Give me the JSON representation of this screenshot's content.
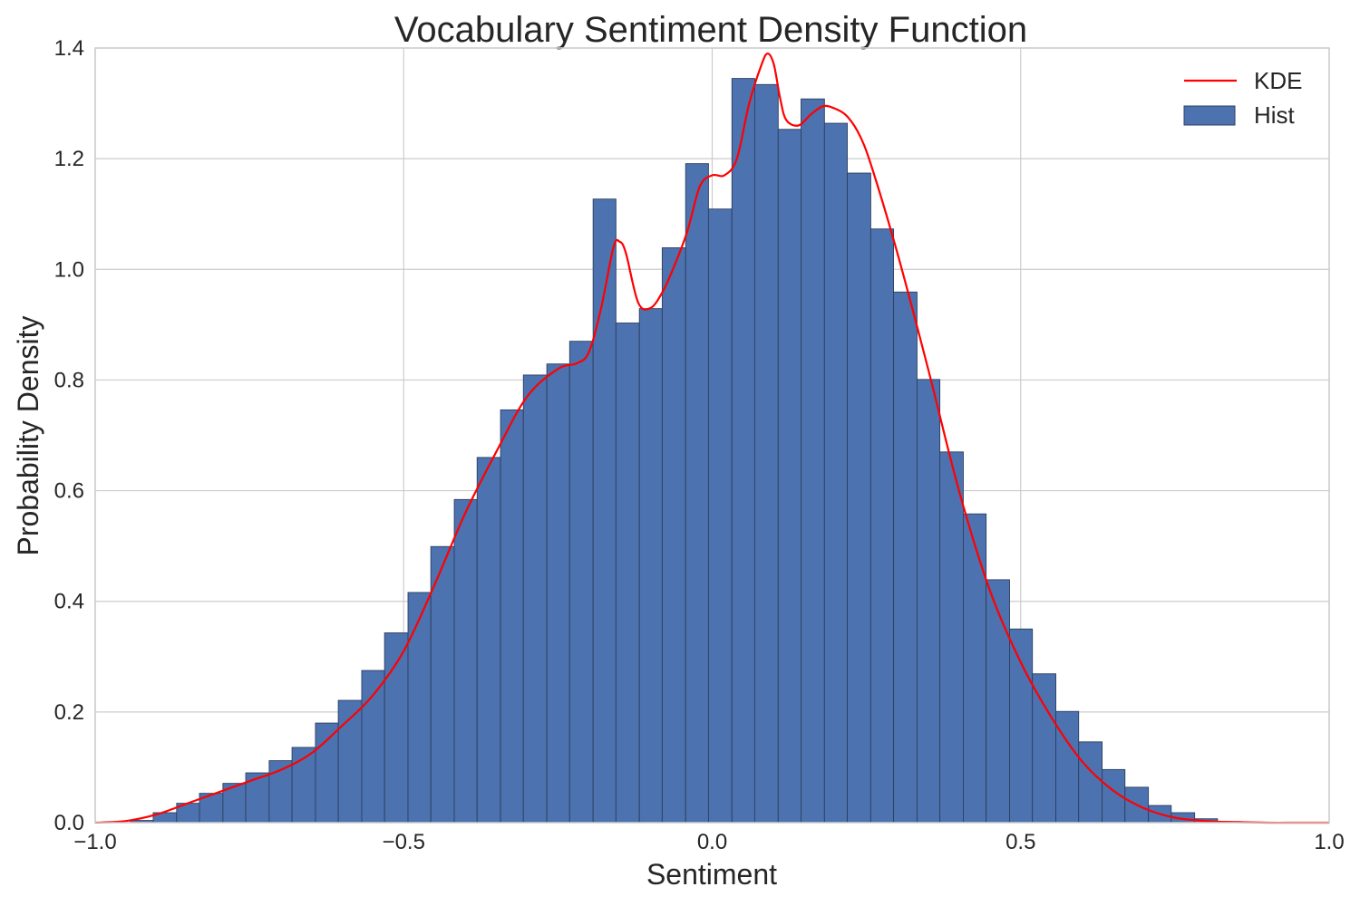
{
  "chart_data": {
    "type": "bar",
    "title": "Vocabulary Sentiment Density Function",
    "xlabel": "Sentiment",
    "ylabel": "Probability Density",
    "xlim": [
      -1.0,
      1.0
    ],
    "ylim": [
      0.0,
      1.4
    ],
    "xticks": [
      "−1.0",
      "−0.5",
      "0.0",
      "0.5",
      "1.0"
    ],
    "xtick_values": [
      -1.0,
      -0.5,
      0.0,
      0.5,
      1.0
    ],
    "yticks": [
      "0.0",
      "0.2",
      "0.4",
      "0.6",
      "0.8",
      "1.0",
      "1.2",
      "1.4"
    ],
    "ytick_values": [
      0.0,
      0.2,
      0.4,
      0.6,
      0.8,
      1.0,
      1.2,
      1.4
    ],
    "grid": true,
    "legend_position": "top-right",
    "colors": {
      "hist": "#4c72b0",
      "kde": "#ff0000",
      "grid": "#cccccc",
      "edge": "#2f3f5f"
    },
    "series": [
      {
        "name": "Hist",
        "kind": "histogram",
        "bin_edges": [
          -0.943,
          -0.906,
          -0.868,
          -0.831,
          -0.793,
          -0.756,
          -0.718,
          -0.681,
          -0.643,
          -0.606,
          -0.568,
          -0.531,
          -0.493,
          -0.456,
          -0.418,
          -0.381,
          -0.343,
          -0.306,
          -0.268,
          -0.231,
          -0.193,
          -0.156,
          -0.118,
          -0.081,
          -0.043,
          -0.006,
          0.032,
          0.069,
          0.107,
          0.144,
          0.182,
          0.219,
          0.257,
          0.294,
          0.332,
          0.369,
          0.407,
          0.444,
          0.482,
          0.519,
          0.557,
          0.594,
          0.632,
          0.669,
          0.707,
          0.744,
          0.782,
          0.819,
          0.857
        ],
        "values": [
          0.004,
          0.018,
          0.035,
          0.053,
          0.071,
          0.09,
          0.112,
          0.136,
          0.18,
          0.221,
          0.275,
          0.343,
          0.416,
          0.499,
          0.584,
          0.66,
          0.746,
          0.809,
          0.829,
          0.87,
          1.127,
          0.903,
          0.929,
          1.039,
          1.191,
          1.109,
          1.345,
          1.334,
          1.253,
          1.308,
          1.264,
          1.174,
          1.073,
          0.959,
          0.801,
          0.67,
          0.558,
          0.439,
          0.35,
          0.269,
          0.201,
          0.146,
          0.096,
          0.064,
          0.031,
          0.018,
          0.007,
          0.002
        ]
      },
      {
        "name": "KDE",
        "kind": "line",
        "x": [
          -1.0,
          -0.95,
          -0.9,
          -0.85,
          -0.8,
          -0.75,
          -0.7,
          -0.65,
          -0.6,
          -0.55,
          -0.5,
          -0.45,
          -0.4,
          -0.35,
          -0.3,
          -0.25,
          -0.22,
          -0.2,
          -0.18,
          -0.16,
          -0.15,
          -0.14,
          -0.12,
          -0.1,
          -0.08,
          -0.06,
          -0.04,
          -0.02,
          0.0,
          0.02,
          0.04,
          0.06,
          0.08,
          0.09,
          0.1,
          0.11,
          0.12,
          0.14,
          0.16,
          0.18,
          0.2,
          0.22,
          0.24,
          0.26,
          0.3,
          0.35,
          0.4,
          0.45,
          0.5,
          0.55,
          0.6,
          0.65,
          0.7,
          0.75,
          0.8,
          0.85,
          0.9,
          0.95,
          1.0
        ],
        "y": [
          0.0,
          0.003,
          0.015,
          0.035,
          0.055,
          0.075,
          0.095,
          0.125,
          0.175,
          0.23,
          0.31,
          0.43,
          0.56,
          0.67,
          0.77,
          0.82,
          0.83,
          0.85,
          0.93,
          1.04,
          1.05,
          1.03,
          0.94,
          0.93,
          0.96,
          1.01,
          1.07,
          1.15,
          1.17,
          1.17,
          1.2,
          1.3,
          1.37,
          1.39,
          1.37,
          1.31,
          1.27,
          1.26,
          1.28,
          1.295,
          1.29,
          1.275,
          1.24,
          1.18,
          1.03,
          0.82,
          0.6,
          0.42,
          0.29,
          0.19,
          0.11,
          0.058,
          0.026,
          0.009,
          0.003,
          0.001,
          0.0,
          0.0,
          0.0
        ]
      }
    ]
  }
}
